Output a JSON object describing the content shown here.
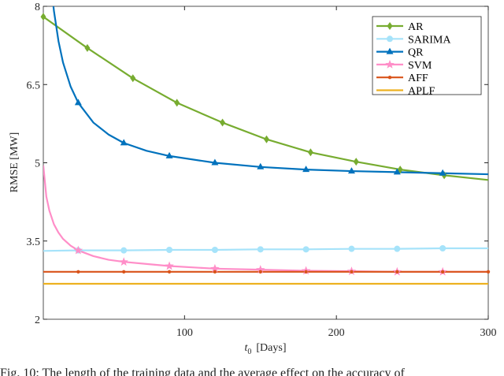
{
  "chart_data": {
    "type": "line",
    "title": "",
    "xlabel": "t",
    "xlabel_sub": "0",
    "xlabel_unit": "[Days]",
    "ylabel": "RMSE [MW]",
    "xlim": [
      7,
      300
    ],
    "ylim": [
      2,
      8
    ],
    "xticks": [
      100,
      200,
      300
    ],
    "yticks": [
      2,
      3.5,
      5,
      6.5,
      8
    ],
    "ytick_labels": [
      "2",
      "3.5",
      "5",
      "6.5",
      "8"
    ],
    "grid": false,
    "legend_position": "top-right",
    "series": [
      {
        "name": "AR",
        "color": "#77AC30",
        "marker": "diamond",
        "x": [
          7,
          36,
          66,
          95,
          125,
          154,
          183,
          213,
          242,
          271,
          300
        ],
        "y": [
          7.8,
          7.2,
          6.62,
          6.15,
          5.77,
          5.45,
          5.2,
          5.02,
          4.87,
          4.76,
          4.67
        ],
        "marker_x": [
          7,
          36,
          66,
          95,
          125,
          154,
          183,
          213,
          242,
          271
        ]
      },
      {
        "name": "SARIMA",
        "color": "#A6E3FA",
        "marker": "circle",
        "x": [
          7,
          30,
          60,
          90,
          120,
          150,
          180,
          210,
          240,
          270,
          300
        ],
        "y": [
          3.31,
          3.32,
          3.32,
          3.33,
          3.33,
          3.34,
          3.34,
          3.35,
          3.35,
          3.36,
          3.36
        ],
        "marker_x": [
          30,
          60,
          90,
          120,
          150,
          180,
          210,
          240,
          270
        ]
      },
      {
        "name": "QR",
        "color": "#0072BD",
        "marker": "triangle",
        "x": [
          12,
          14,
          17,
          20,
          25,
          30,
          40,
          50,
          60,
          75,
          90,
          120,
          150,
          180,
          210,
          240,
          270,
          300
        ],
        "y": [
          8.45,
          7.91,
          7.33,
          6.92,
          6.46,
          6.15,
          5.77,
          5.54,
          5.38,
          5.23,
          5.13,
          5.0,
          4.92,
          4.87,
          4.84,
          4.82,
          4.8,
          4.78
        ],
        "marker_x": [
          30,
          60,
          90,
          120,
          150,
          180,
          210,
          240,
          270
        ]
      },
      {
        "name": "SVM",
        "color": "#FF8EC8",
        "marker": "star",
        "x": [
          7,
          9,
          11,
          14,
          17,
          20,
          25,
          30,
          40,
          50,
          60,
          75,
          90,
          120,
          150,
          180,
          210,
          240,
          270,
          300
        ],
        "y": [
          4.95,
          4.35,
          4.08,
          3.82,
          3.66,
          3.54,
          3.41,
          3.32,
          3.21,
          3.14,
          3.1,
          3.06,
          3.02,
          2.97,
          2.95,
          2.93,
          2.92,
          2.91,
          2.91,
          2.91
        ],
        "marker_x": [
          30,
          60,
          90,
          120,
          150,
          180,
          210,
          240,
          270
        ]
      },
      {
        "name": "AFF",
        "color": "#D95319",
        "marker": "dot",
        "x": [
          7,
          300
        ],
        "y": [
          2.91,
          2.91
        ],
        "marker_x": [
          30,
          60,
          90,
          120,
          150,
          180,
          210,
          240,
          270,
          300
        ]
      },
      {
        "name": "APLF",
        "color": "#EDB120",
        "marker": "none",
        "x": [
          7,
          300
        ],
        "y": [
          2.68,
          2.68
        ],
        "marker_x": []
      }
    ]
  },
  "caption": "Fig. 10: The length of the training data and the average effect on the accuracy of"
}
